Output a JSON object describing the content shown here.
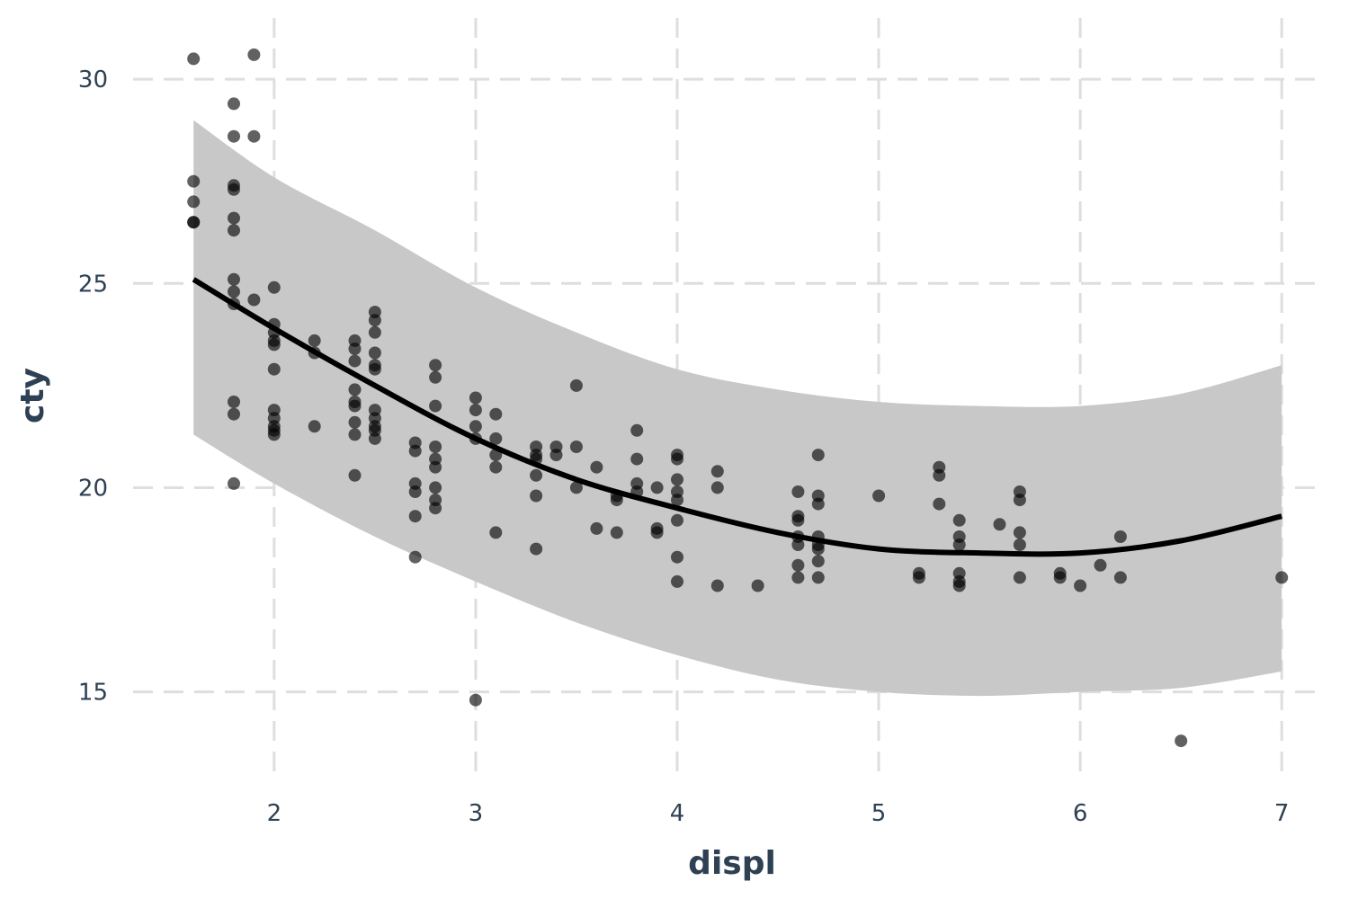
{
  "chart_data": {
    "type": "scatter",
    "xlabel": "displ",
    "ylabel": "cty",
    "xlim": [
      1.3,
      7.2
    ],
    "ylim": [
      12.9,
      31.5
    ],
    "x_ticks": [
      2,
      3,
      4,
      5,
      6,
      7
    ],
    "y_ticks": [
      15,
      20,
      25,
      30
    ],
    "grid": true,
    "legend": "none",
    "colors": {
      "points": "#000000",
      "fit": "#000000",
      "band": "#c8c8c8",
      "grid": "#dedede",
      "text": "#2e4053"
    },
    "points": [
      [
        1.6,
        30.5
      ],
      [
        1.6,
        27.5
      ],
      [
        1.6,
        27.0
      ],
      [
        1.6,
        26.5
      ],
      [
        1.6,
        26.5
      ],
      [
        1.8,
        29.4
      ],
      [
        1.8,
        28.6
      ],
      [
        1.8,
        27.4
      ],
      [
        1.8,
        27.3
      ],
      [
        1.8,
        26.6
      ],
      [
        1.8,
        26.3
      ],
      [
        1.8,
        25.1
      ],
      [
        1.8,
        24.8
      ],
      [
        1.8,
        24.5
      ],
      [
        1.8,
        22.1
      ],
      [
        1.8,
        21.8
      ],
      [
        1.8,
        20.1
      ],
      [
        1.9,
        30.6
      ],
      [
        1.9,
        28.6
      ],
      [
        1.9,
        24.6
      ],
      [
        2.0,
        24.9
      ],
      [
        2.0,
        24.0
      ],
      [
        2.0,
        23.8
      ],
      [
        2.0,
        23.6
      ],
      [
        2.0,
        23.5
      ],
      [
        2.0,
        22.9
      ],
      [
        2.0,
        21.9
      ],
      [
        2.0,
        21.7
      ],
      [
        2.0,
        21.5
      ],
      [
        2.0,
        21.4
      ],
      [
        2.0,
        21.3
      ],
      [
        2.2,
        23.6
      ],
      [
        2.2,
        23.3
      ],
      [
        2.2,
        21.5
      ],
      [
        2.4,
        23.6
      ],
      [
        2.4,
        23.4
      ],
      [
        2.4,
        23.1
      ],
      [
        2.4,
        22.4
      ],
      [
        2.4,
        22.0
      ],
      [
        2.4,
        21.6
      ],
      [
        2.4,
        21.3
      ],
      [
        2.4,
        20.3
      ],
      [
        2.4,
        22.1
      ],
      [
        2.5,
        24.3
      ],
      [
        2.5,
        24.1
      ],
      [
        2.5,
        23.8
      ],
      [
        2.5,
        23.3
      ],
      [
        2.5,
        23.0
      ],
      [
        2.5,
        22.9
      ],
      [
        2.5,
        21.9
      ],
      [
        2.5,
        21.7
      ],
      [
        2.5,
        21.5
      ],
      [
        2.5,
        21.4
      ],
      [
        2.5,
        21.2
      ],
      [
        2.7,
        21.1
      ],
      [
        2.7,
        20.9
      ],
      [
        2.7,
        20.1
      ],
      [
        2.7,
        19.9
      ],
      [
        2.7,
        19.3
      ],
      [
        2.7,
        18.3
      ],
      [
        2.8,
        23.0
      ],
      [
        2.8,
        22.7
      ],
      [
        2.8,
        22.0
      ],
      [
        2.8,
        21.0
      ],
      [
        2.8,
        20.7
      ],
      [
        2.8,
        20.5
      ],
      [
        2.8,
        20.0
      ],
      [
        2.8,
        19.7
      ],
      [
        2.8,
        19.5
      ],
      [
        3.0,
        22.2
      ],
      [
        3.0,
        21.9
      ],
      [
        3.0,
        21.5
      ],
      [
        3.0,
        21.2
      ],
      [
        3.0,
        14.8
      ],
      [
        3.1,
        21.8
      ],
      [
        3.1,
        21.2
      ],
      [
        3.1,
        20.8
      ],
      [
        3.1,
        20.5
      ],
      [
        3.1,
        18.9
      ],
      [
        3.3,
        21.0
      ],
      [
        3.3,
        20.8
      ],
      [
        3.3,
        20.7
      ],
      [
        3.3,
        20.3
      ],
      [
        3.3,
        19.8
      ],
      [
        3.3,
        18.5
      ],
      [
        3.4,
        21.0
      ],
      [
        3.4,
        20.8
      ],
      [
        3.5,
        22.5
      ],
      [
        3.5,
        21.0
      ],
      [
        3.5,
        20.0
      ],
      [
        3.6,
        20.5
      ],
      [
        3.6,
        19.0
      ],
      [
        3.7,
        19.8
      ],
      [
        3.7,
        19.7
      ],
      [
        3.7,
        18.9
      ],
      [
        3.8,
        21.4
      ],
      [
        3.8,
        20.7
      ],
      [
        3.8,
        20.1
      ],
      [
        3.8,
        19.9
      ],
      [
        3.9,
        20.0
      ],
      [
        3.9,
        19.0
      ],
      [
        3.9,
        18.9
      ],
      [
        4.0,
        20.8
      ],
      [
        4.0,
        20.7
      ],
      [
        4.0,
        20.2
      ],
      [
        4.0,
        19.9
      ],
      [
        4.0,
        19.7
      ],
      [
        4.0,
        19.2
      ],
      [
        4.0,
        18.3
      ],
      [
        4.0,
        17.7
      ],
      [
        4.2,
        20.4
      ],
      [
        4.2,
        20.0
      ],
      [
        4.2,
        17.6
      ],
      [
        4.4,
        17.6
      ],
      [
        4.6,
        19.9
      ],
      [
        4.6,
        19.3
      ],
      [
        4.6,
        19.2
      ],
      [
        4.6,
        18.8
      ],
      [
        4.6,
        18.6
      ],
      [
        4.6,
        18.1
      ],
      [
        4.6,
        17.8
      ],
      [
        4.7,
        20.8
      ],
      [
        4.7,
        19.8
      ],
      [
        4.7,
        19.6
      ],
      [
        4.7,
        18.8
      ],
      [
        4.7,
        18.6
      ],
      [
        4.7,
        18.5
      ],
      [
        4.7,
        18.2
      ],
      [
        4.7,
        17.8
      ],
      [
        5.0,
        19.8
      ],
      [
        5.2,
        17.9
      ],
      [
        5.2,
        17.8
      ],
      [
        5.3,
        20.5
      ],
      [
        5.3,
        20.3
      ],
      [
        5.3,
        19.6
      ],
      [
        5.4,
        19.2
      ],
      [
        5.4,
        18.8
      ],
      [
        5.4,
        18.6
      ],
      [
        5.4,
        17.9
      ],
      [
        5.4,
        17.7
      ],
      [
        5.4,
        17.6
      ],
      [
        5.6,
        19.1
      ],
      [
        5.7,
        19.9
      ],
      [
        5.7,
        19.7
      ],
      [
        5.7,
        18.9
      ],
      [
        5.7,
        18.6
      ],
      [
        5.7,
        17.8
      ],
      [
        5.9,
        17.9
      ],
      [
        5.9,
        17.8
      ],
      [
        6.0,
        17.6
      ],
      [
        6.1,
        18.1
      ],
      [
        6.2,
        18.8
      ],
      [
        6.2,
        17.8
      ],
      [
        6.5,
        13.8
      ],
      [
        7.0,
        17.8
      ]
    ],
    "fit": {
      "x": [
        1.6,
        2.0,
        2.5,
        3.0,
        3.5,
        4.0,
        4.5,
        5.0,
        5.5,
        6.0,
        6.5,
        7.0
      ],
      "y": [
        25.1,
        23.9,
        22.5,
        21.2,
        20.2,
        19.5,
        18.9,
        18.5,
        18.4,
        18.4,
        18.7,
        19.3
      ],
      "lower": [
        21.3,
        20.1,
        18.8,
        17.7,
        16.7,
        15.9,
        15.3,
        15.0,
        14.9,
        15.0,
        15.1,
        15.5
      ],
      "upper": [
        29.0,
        27.6,
        26.3,
        24.9,
        23.8,
        22.9,
        22.4,
        22.1,
        22.0,
        22.0,
        22.3,
        23.0
      ]
    }
  }
}
